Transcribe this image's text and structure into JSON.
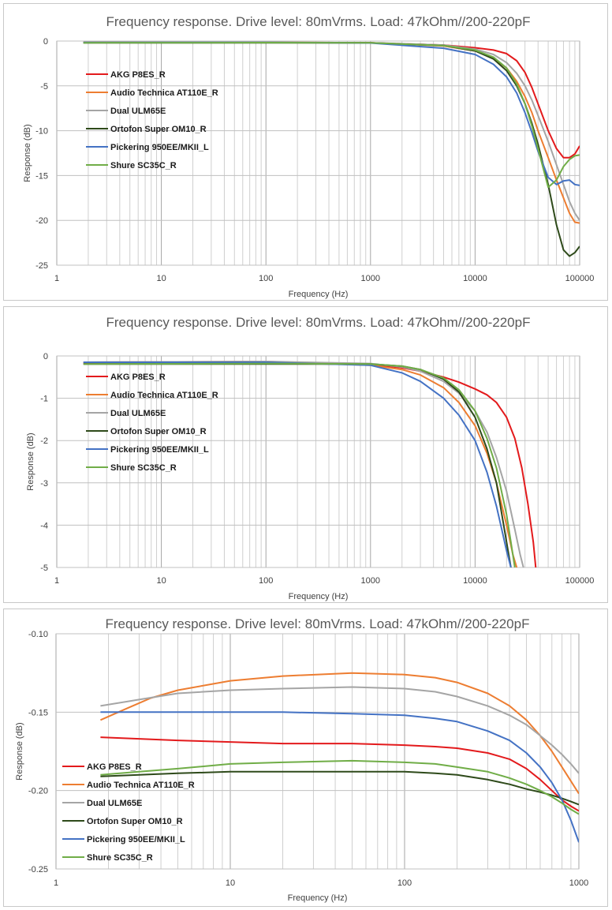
{
  "chart_data": [
    {
      "type": "line",
      "title": "Frequency response. Drive level: 80mVrms. Load: 47kOhm//200-220pF",
      "xlabel": "Frequency (Hz)",
      "ylabel": "Response (dB)",
      "xscale": "log",
      "xlim": [
        1,
        100000
      ],
      "ylim": [
        -25,
        0
      ],
      "x_ticks": [
        "1",
        "10",
        "100",
        "1000",
        "10000",
        "100000"
      ],
      "y_ticks": [
        "0",
        "-5",
        "-10",
        "-15",
        "-20",
        "-25"
      ],
      "y_tick_values": [
        0,
        -5,
        -10,
        -15,
        -20,
        -25
      ],
      "grid": true,
      "legend": "left",
      "series": [
        {
          "name": "AKG P8ES_R",
          "color": "#e31a1c",
          "x": [
            1.8,
            100,
            1000,
            5000,
            10000,
            15000,
            20000,
            25000,
            30000,
            35000,
            40000,
            50000,
            60000,
            70000,
            80000,
            90000,
            100000
          ],
          "y": [
            -0.15,
            -0.17,
            -0.2,
            -0.45,
            -0.75,
            -1.0,
            -1.4,
            -2.2,
            -3.5,
            -5.2,
            -7.0,
            -10.0,
            -12.0,
            -13.0,
            -13.0,
            -12.6,
            -11.7
          ]
        },
        {
          "name": "Audio Technica AT110E_R",
          "color": "#ed7d31",
          "x": [
            1.8,
            100,
            1000,
            5000,
            10000,
            15000,
            20000,
            25000,
            30000,
            35000,
            40000,
            50000,
            60000,
            70000,
            80000,
            90000,
            100000
          ],
          "y": [
            -0.15,
            -0.13,
            -0.2,
            -0.55,
            -1.1,
            -1.9,
            -3.0,
            -4.5,
            -6.2,
            -8.0,
            -10.0,
            -13.0,
            -15.5,
            -17.5,
            -19.2,
            -20.2,
            -20.3
          ]
        },
        {
          "name": "Dual ULM65E",
          "color": "#a5a5a5",
          "x": [
            1.8,
            100,
            1000,
            5000,
            10000,
            15000,
            20000,
            25000,
            30000,
            35000,
            40000,
            50000,
            60000,
            70000,
            80000,
            90000,
            100000
          ],
          "y": [
            -0.15,
            -0.14,
            -0.19,
            -0.45,
            -0.9,
            -1.5,
            -2.4,
            -3.6,
            -5.0,
            -6.6,
            -8.3,
            -11.2,
            -13.8,
            -16.0,
            -17.9,
            -19.2,
            -20.0
          ]
        },
        {
          "name": "Ortofon Super OM10_R",
          "color": "#2e4a1a",
          "x": [
            1.8,
            100,
            1000,
            5000,
            10000,
            15000,
            20000,
            25000,
            30000,
            35000,
            40000,
            50000,
            60000,
            70000,
            80000,
            90000,
            100000
          ],
          "y": [
            -0.19,
            -0.19,
            -0.2,
            -0.5,
            -1.1,
            -2.0,
            -3.3,
            -5.0,
            -7.0,
            -9.2,
            -11.5,
            -16.0,
            -20.5,
            -23.3,
            -24.0,
            -23.6,
            -22.9
          ]
        },
        {
          "name": "Pickering 950EE/MKII_L",
          "color": "#4472c4",
          "x": [
            1.8,
            100,
            1000,
            5000,
            10000,
            15000,
            20000,
            25000,
            30000,
            35000,
            40000,
            50000,
            60000,
            70000,
            80000,
            90000,
            100000
          ],
          "y": [
            -0.15,
            -0.15,
            -0.22,
            -0.8,
            -1.5,
            -2.6,
            -4.0,
            -5.8,
            -8.0,
            -10.2,
            -12.3,
            -15.2,
            -16.0,
            -15.6,
            -15.5,
            -16.0,
            -16.1
          ]
        },
        {
          "name": "Shure SC35C_R",
          "color": "#70ad47",
          "x": [
            1.8,
            100,
            1000,
            5000,
            10000,
            15000,
            20000,
            25000,
            30000,
            35000,
            40000,
            50000,
            60000,
            70000,
            80000,
            90000,
            100000
          ],
          "y": [
            -0.19,
            -0.18,
            -0.2,
            -0.5,
            -1.0,
            -1.8,
            -3.0,
            -4.8,
            -7.0,
            -9.5,
            -12.0,
            -16.3,
            -15.5,
            -14.0,
            -13.2,
            -12.8,
            -12.7
          ]
        }
      ]
    },
    {
      "type": "line",
      "title": "Frequency response. Drive level: 80mVrms. Load: 47kOhm//200-220pF",
      "xlabel": "Frequency (Hz)",
      "ylabel": "Response (dB)",
      "xscale": "log",
      "xlim": [
        1,
        100000
      ],
      "ylim": [
        -5,
        0
      ],
      "x_ticks": [
        "1",
        "10",
        "100",
        "1000",
        "10000",
        "100000"
      ],
      "y_ticks": [
        "0",
        "-1",
        "-2",
        "-3",
        "-4",
        "-5"
      ],
      "y_tick_values": [
        0,
        -1,
        -2,
        -3,
        -4,
        -5
      ],
      "grid": true,
      "legend": "left",
      "series": [
        {
          "name": "AKG P8ES_R",
          "color": "#e31a1c",
          "x": [
            1.8,
            100,
            1000,
            2000,
            3000,
            5000,
            7000,
            10000,
            13000,
            16000,
            20000,
            24000,
            28000,
            32000,
            36000,
            38000
          ],
          "y": [
            -0.17,
            -0.17,
            -0.2,
            -0.28,
            -0.36,
            -0.5,
            -0.62,
            -0.78,
            -0.92,
            -1.1,
            -1.45,
            -1.95,
            -2.65,
            -3.5,
            -4.4,
            -5.0
          ]
        },
        {
          "name": "Audio Technica AT110E_R",
          "color": "#ed7d31",
          "x": [
            1.8,
            100,
            1000,
            2000,
            3000,
            5000,
            7000,
            10000,
            13000,
            16000,
            20000,
            23000,
            25000
          ],
          "y": [
            -0.15,
            -0.13,
            -0.22,
            -0.32,
            -0.45,
            -0.75,
            -1.1,
            -1.65,
            -2.3,
            -3.0,
            -4.0,
            -4.7,
            -5.0
          ]
        },
        {
          "name": "Dual ULM65E",
          "color": "#a5a5a5",
          "x": [
            1.8,
            100,
            1000,
            2000,
            3000,
            5000,
            7000,
            10000,
            13000,
            16000,
            20000,
            24000,
            27000,
            29000
          ],
          "y": [
            -0.15,
            -0.13,
            -0.18,
            -0.26,
            -0.36,
            -0.6,
            -0.88,
            -1.3,
            -1.8,
            -2.4,
            -3.2,
            -4.1,
            -4.7,
            -5.0
          ]
        },
        {
          "name": "Ortofon Super OM10_R",
          "color": "#2e4a1a",
          "x": [
            1.8,
            100,
            1000,
            2000,
            3000,
            5000,
            7000,
            10000,
            13000,
            16000,
            20000,
            22000
          ],
          "y": [
            -0.19,
            -0.19,
            -0.19,
            -0.24,
            -0.32,
            -0.55,
            -0.85,
            -1.45,
            -2.2,
            -3.0,
            -4.4,
            -5.0
          ]
        },
        {
          "name": "Pickering 950EE/MKII_L",
          "color": "#4472c4",
          "x": [
            1.8,
            100,
            1000,
            2000,
            3000,
            5000,
            7000,
            10000,
            13000,
            16000,
            20000,
            22000
          ],
          "y": [
            -0.15,
            -0.15,
            -0.22,
            -0.4,
            -0.6,
            -1.0,
            -1.4,
            -2.0,
            -2.75,
            -3.55,
            -4.6,
            -5.0
          ]
        },
        {
          "name": "Shure SC35C_R",
          "color": "#70ad47",
          "x": [
            1.8,
            100,
            1000,
            2000,
            3000,
            5000,
            7000,
            10000,
            13000,
            16000,
            20000,
            22000,
            24000
          ],
          "y": [
            -0.19,
            -0.18,
            -0.19,
            -0.24,
            -0.32,
            -0.52,
            -0.8,
            -1.3,
            -1.95,
            -2.65,
            -3.75,
            -4.4,
            -5.0
          ]
        }
      ]
    },
    {
      "type": "line",
      "title": "Frequency response. Drive level: 80mVrms. Load: 47kOhm//200-220pF",
      "xlabel": "Frequency (Hz)",
      "ylabel": "Response (dB)",
      "xscale": "log",
      "xlim": [
        1,
        1000
      ],
      "ylim": [
        -0.25,
        -0.1
      ],
      "x_ticks": [
        "1",
        "10",
        "100",
        "1000"
      ],
      "y_ticks": [
        "-0.10",
        "-0.15",
        "-0.20",
        "-0.25"
      ],
      "y_tick_values": [
        -0.1,
        -0.15,
        -0.2,
        -0.25
      ],
      "grid": true,
      "legend": "left",
      "series": [
        {
          "name": "AKG P8ES_R",
          "color": "#e31a1c",
          "x": [
            1.8,
            3,
            5,
            10,
            20,
            50,
            100,
            150,
            200,
            300,
            400,
            500,
            600,
            700,
            800,
            900,
            1000
          ],
          "y": [
            -0.166,
            -0.167,
            -0.168,
            -0.169,
            -0.17,
            -0.17,
            -0.171,
            -0.172,
            -0.173,
            -0.176,
            -0.18,
            -0.186,
            -0.193,
            -0.2,
            -0.206,
            -0.21,
            -0.213
          ]
        },
        {
          "name": "Audio Technica AT110E_R",
          "color": "#ed7d31",
          "x": [
            1.8,
            2.5,
            3.5,
            5,
            10,
            20,
            50,
            100,
            150,
            200,
            300,
            400,
            500,
            600,
            700,
            800,
            900,
            1000
          ],
          "y": [
            -0.155,
            -0.148,
            -0.141,
            -0.136,
            -0.13,
            -0.127,
            -0.125,
            -0.126,
            -0.128,
            -0.131,
            -0.138,
            -0.146,
            -0.155,
            -0.165,
            -0.175,
            -0.185,
            -0.194,
            -0.202
          ]
        },
        {
          "name": "Dual ULM65E",
          "color": "#a5a5a5",
          "x": [
            1.8,
            3,
            5,
            10,
            20,
            50,
            100,
            150,
            200,
            300,
            400,
            500,
            600,
            700,
            800,
            900,
            1000
          ],
          "y": [
            -0.146,
            -0.142,
            -0.138,
            -0.136,
            -0.135,
            -0.134,
            -0.135,
            -0.137,
            -0.14,
            -0.146,
            -0.152,
            -0.158,
            -0.165,
            -0.171,
            -0.177,
            -0.183,
            -0.189
          ]
        },
        {
          "name": "Ortofon Super OM10_R",
          "color": "#2e4a1a",
          "x": [
            1.8,
            3,
            5,
            10,
            20,
            50,
            100,
            150,
            200,
            300,
            400,
            500,
            600,
            700,
            800,
            900,
            1000
          ],
          "y": [
            -0.191,
            -0.19,
            -0.189,
            -0.188,
            -0.188,
            -0.188,
            -0.188,
            -0.189,
            -0.19,
            -0.193,
            -0.196,
            -0.199,
            -0.201,
            -0.203,
            -0.205,
            -0.207,
            -0.209
          ]
        },
        {
          "name": "Pickering 950EE/MKII_L",
          "color": "#4472c4",
          "x": [
            1.8,
            3,
            5,
            10,
            20,
            50,
            100,
            150,
            200,
            300,
            400,
            500,
            600,
            700,
            800,
            900,
            1000
          ],
          "y": [
            -0.15,
            -0.15,
            -0.15,
            -0.15,
            -0.15,
            -0.151,
            -0.152,
            -0.154,
            -0.156,
            -0.162,
            -0.168,
            -0.176,
            -0.185,
            -0.195,
            -0.206,
            -0.219,
            -0.233
          ]
        },
        {
          "name": "Shure SC35C_R",
          "color": "#70ad47",
          "x": [
            1.8,
            3,
            5,
            10,
            20,
            50,
            100,
            150,
            200,
            300,
            400,
            500,
            600,
            700,
            800,
            900,
            1000
          ],
          "y": [
            -0.19,
            -0.188,
            -0.186,
            -0.183,
            -0.182,
            -0.181,
            -0.182,
            -0.183,
            -0.185,
            -0.188,
            -0.192,
            -0.196,
            -0.2,
            -0.204,
            -0.208,
            -0.212,
            -0.215
          ]
        }
      ]
    }
  ]
}
